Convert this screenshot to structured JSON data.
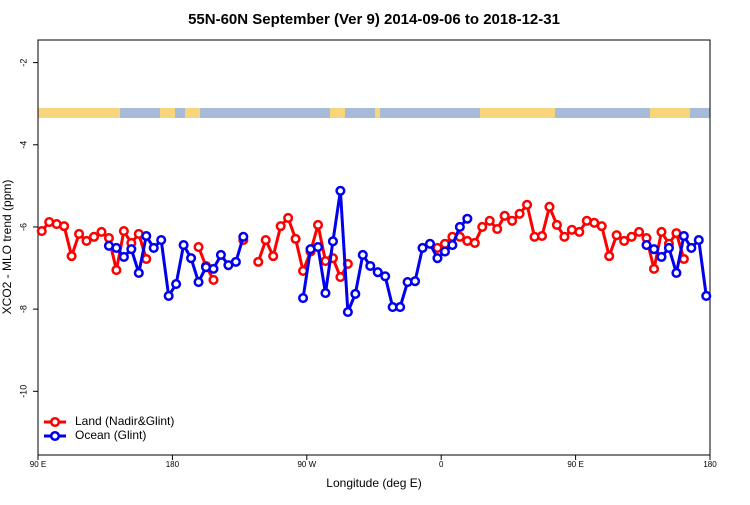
{
  "chart_data": {
    "type": "line",
    "title": "55N-60N September (Ver 9)   2014-09-06 to 2018-12-31",
    "x_label": "Longitude (deg E)",
    "y_label": "XCO2 - MLO trend (ppm)",
    "xlim": [
      90,
      540
    ],
    "xticks": [
      {
        "value": 90,
        "label": "90 E"
      },
      {
        "value": 180,
        "label": "180"
      },
      {
        "value": 270,
        "label": "90 W"
      },
      {
        "value": 360,
        "label": "0"
      },
      {
        "value": 450,
        "label": "90 E"
      },
      {
        "value": 540,
        "label": "180"
      }
    ],
    "ylim": [
      -11.55,
      -1.45
    ],
    "yticks": [
      -10,
      -8,
      -6,
      -4,
      -2
    ],
    "legend": "bottom-left",
    "x": [
      92.5,
      97.5,
      102.5,
      107.5,
      112.5,
      117.5,
      122.5,
      127.5,
      132.5,
      137.5,
      142.5,
      147.5,
      152.5,
      157.5,
      162.5,
      167.5,
      172.5,
      177.5,
      182.5,
      187.5,
      192.5,
      197.5,
      202.5,
      207.5,
      212.5,
      217.5,
      222.5,
      227.5,
      232.5,
      237.5,
      242.5,
      247.5,
      252.5,
      257.5,
      262.5,
      267.5,
      272.5,
      277.5,
      282.5,
      287.5,
      292.5,
      297.5,
      302.5,
      307.5,
      312.5,
      317.5,
      322.5,
      327.5,
      332.5,
      337.5,
      342.5,
      347.5,
      352.5,
      357.5,
      362.5,
      367.5,
      372.5,
      377.5,
      382.5,
      387.5,
      392.5,
      397.5,
      402.5,
      407.5,
      412.5,
      417.5,
      422.5,
      427.5,
      432.5,
      437.5,
      442.5,
      447.5,
      452.5,
      457.5,
      462.5,
      467.5,
      472.5,
      477.5,
      482.5,
      487.5,
      492.5,
      497.5,
      502.5,
      507.5,
      512.5,
      517.5,
      522.5,
      527.5,
      532.5,
      537.5
    ],
    "series": [
      {
        "name": "Land (Nadir&Glint)",
        "color": "#ff0000",
        "values": [
          -6.1,
          -5.88,
          -5.93,
          -5.98,
          -6.71,
          -6.17,
          -6.34,
          -6.24,
          -6.12,
          -6.27,
          -7.05,
          -6.1,
          -6.39,
          -6.17,
          -6.78,
          null,
          null,
          null,
          null,
          null,
          null,
          -6.49,
          -6.95,
          -7.29,
          null,
          null,
          null,
          -6.32,
          null,
          -6.85,
          -6.32,
          -6.71,
          -5.98,
          -5.78,
          -6.29,
          -7.07,
          -6.6,
          -5.95,
          -6.83,
          -6.76,
          -7.22,
          -6.9,
          null,
          null,
          null,
          null,
          null,
          null,
          null,
          null,
          null,
          null,
          null,
          -6.51,
          -6.41,
          -6.24,
          -6.24,
          -6.34,
          -6.39,
          -6.0,
          -5.85,
          -6.05,
          -5.73,
          -5.85,
          -5.68,
          -5.46,
          -6.24,
          -6.22,
          -5.51,
          -5.95,
          -6.24,
          -6.07,
          -6.12,
          -5.85,
          -5.9,
          -5.98,
          -6.71,
          -6.2,
          -6.34,
          -6.24,
          -6.12,
          -6.27,
          -7.02,
          -6.12,
          -6.41,
          -6.15,
          -6.78,
          null,
          null,
          null
        ]
      },
      {
        "name": "Ocean (Glint)",
        "color": "#0000ee",
        "values": [
          null,
          null,
          null,
          null,
          null,
          null,
          null,
          null,
          null,
          -6.46,
          -6.51,
          -6.73,
          -6.54,
          -7.12,
          -6.22,
          -6.51,
          -6.32,
          -7.68,
          -7.39,
          -6.44,
          -6.76,
          -7.34,
          -6.98,
          -7.02,
          -6.68,
          -6.93,
          -6.85,
          -6.24,
          null,
          null,
          null,
          null,
          null,
          null,
          null,
          -7.73,
          -6.54,
          -6.49,
          -7.61,
          -6.35,
          -5.12,
          -8.07,
          -7.63,
          -6.68,
          -6.95,
          -7.1,
          -7.2,
          -7.95,
          -7.95,
          -7.34,
          -7.32,
          -6.51,
          -6.41,
          -6.76,
          -6.6,
          -6.44,
          -6.0,
          -5.8,
          null,
          null,
          null,
          null,
          null,
          null,
          null,
          null,
          null,
          null,
          null,
          null,
          null,
          null,
          null,
          null,
          null,
          null,
          null,
          null,
          null,
          null,
          null,
          -6.44,
          -6.54,
          -6.73,
          -6.51,
          -7.12,
          -6.22,
          -6.51,
          -6.32,
          -7.68
        ]
      }
    ]
  }
}
